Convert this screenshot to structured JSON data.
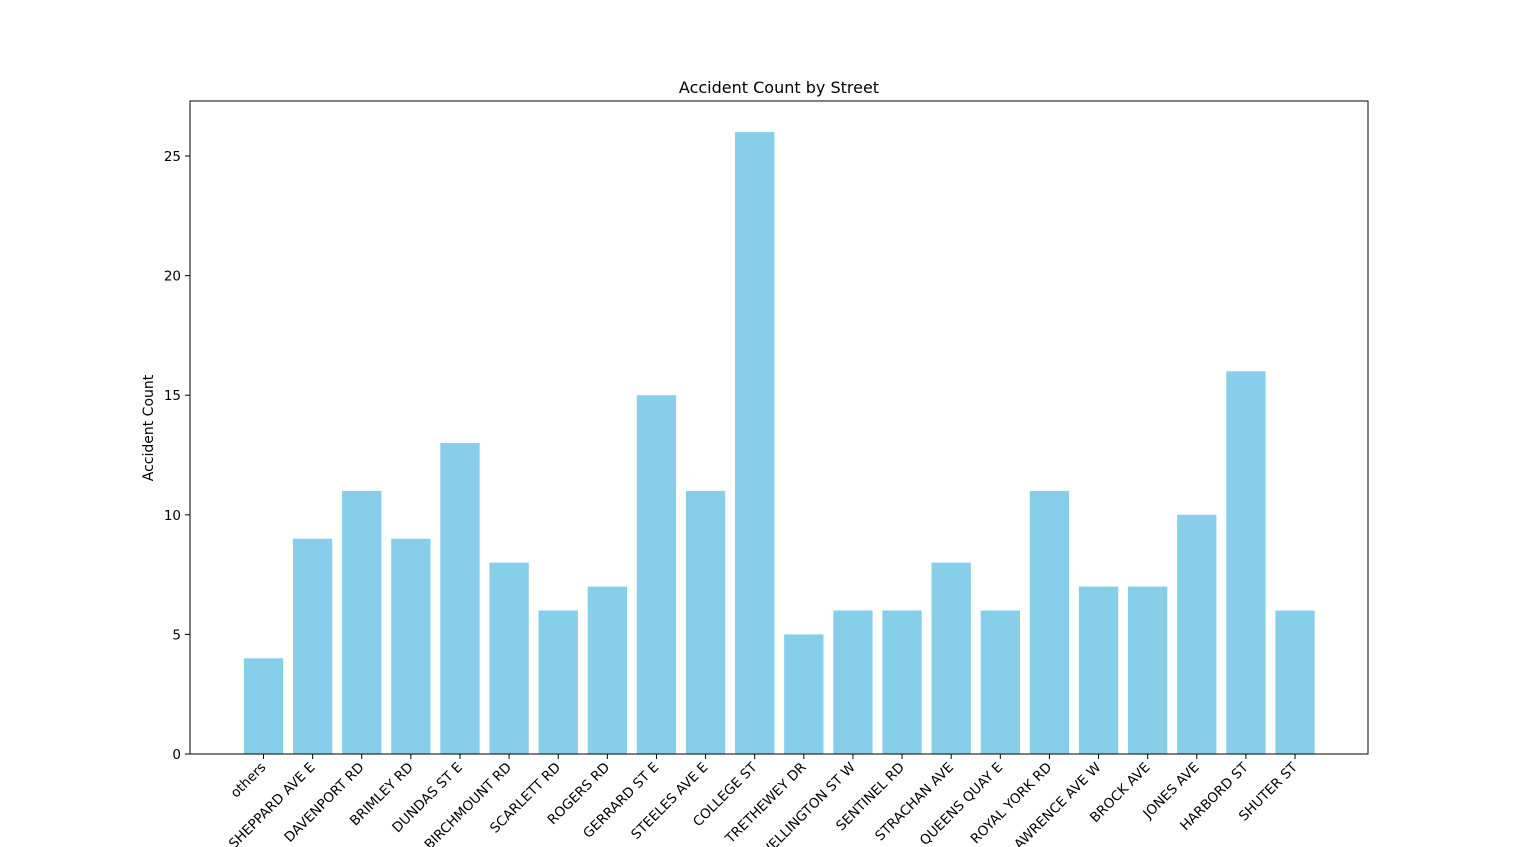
{
  "chart_data": {
    "type": "bar",
    "title": "Accident Count by Street",
    "xlabel": "",
    "ylabel": "Accident Count",
    "categories": [
      "others",
      "SHEPPARD AVE E",
      "DAVENPORT RD",
      "BRIMLEY RD",
      "DUNDAS ST E",
      "BIRCHMOUNT RD",
      "SCARLETT RD",
      "ROGERS RD",
      "GERRARD ST E",
      "STEELES AVE E",
      "COLLEGE ST",
      "TRETHEWEY DR",
      "WELLINGTON ST W",
      "SENTINEL RD",
      "STRACHAN AVE",
      "QUEENS QUAY E",
      "ROYAL YORK RD",
      "LAWRENCE AVE W",
      "BROCK AVE",
      "JONES AVE",
      "HARBORD ST",
      "SHUTER ST"
    ],
    "values": [
      4,
      9,
      11,
      9,
      13,
      8,
      6,
      7,
      15,
      11,
      26,
      5,
      6,
      6,
      8,
      6,
      11,
      7,
      7,
      10,
      16,
      6
    ],
    "ylim": [
      0,
      27.3
    ],
    "yticks": [
      0,
      5,
      10,
      15,
      20,
      25
    ],
    "bar_color": "#87ceeb",
    "grid": false,
    "legend": "none"
  }
}
